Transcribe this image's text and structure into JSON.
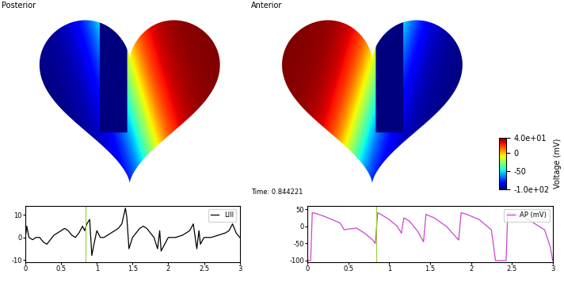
{
  "panels": {
    "posterior": {
      "title": "Posterior"
    },
    "anterior": {
      "title": "Anterior",
      "time_label": "Time: 0.844221"
    }
  },
  "colorbar": {
    "label": "Voltage (mV)",
    "range": [
      -100,
      40
    ],
    "ticks": [
      {
        "value": 40,
        "label": "4.0e+01"
      },
      0,
      -50,
      {
        "value": -100,
        "label": "-1.0e+02"
      }
    ]
  },
  "chart_data": [
    {
      "type": "line",
      "legend": "upper right",
      "vertical_line": 0.844221,
      "xlim": [
        0,
        3
      ],
      "xticks": [
        0,
        0.5,
        1,
        1.5,
        2,
        2.5,
        3
      ],
      "ylim": [
        -11,
        14
      ],
      "yticks": [
        -10,
        0,
        10
      ],
      "x": [
        0,
        0.02,
        0.05,
        0.1,
        0.15,
        0.2,
        0.25,
        0.3,
        0.35,
        0.4,
        0.45,
        0.5,
        0.55,
        0.6,
        0.65,
        0.7,
        0.75,
        0.8,
        0.83,
        0.86,
        0.9,
        0.93,
        0.96,
        1.0,
        1.05,
        1.1,
        1.15,
        1.2,
        1.25,
        1.3,
        1.35,
        1.4,
        1.42,
        1.45,
        1.5,
        1.55,
        1.6,
        1.65,
        1.7,
        1.75,
        1.8,
        1.85,
        1.88,
        1.9,
        1.95,
        2.0,
        2.1,
        2.2,
        2.3,
        2.35,
        2.4,
        2.43,
        2.45,
        2.5,
        2.6,
        2.7,
        2.8,
        2.85,
        2.9,
        2.95,
        3.0
      ],
      "series": [
        {
          "name": "LIII",
          "color": "#000000",
          "values": [
            0,
            5,
            0,
            -1,
            0,
            0,
            -2,
            -3,
            -1,
            1,
            2,
            3,
            4,
            3,
            1,
            0,
            2,
            5,
            3,
            6,
            8,
            -8,
            -3,
            3,
            0,
            0,
            1,
            2,
            3,
            4,
            6,
            13,
            9,
            -5,
            0,
            2,
            4,
            5,
            4,
            2,
            0,
            -5,
            3,
            -6,
            -3,
            0,
            0,
            1,
            3,
            6,
            -5,
            3,
            -3,
            0,
            0,
            1,
            2,
            3,
            6,
            2,
            0
          ]
        }
      ]
    },
    {
      "type": "line",
      "legend": "upper right",
      "vertical_line": 0.844221,
      "xlim": [
        0,
        3
      ],
      "xticks": [
        0,
        0.5,
        1,
        1.5,
        2,
        2.5,
        3
      ],
      "ylim": [
        -105,
        60
      ],
      "yticks": [
        -100,
        -50,
        0,
        50
      ],
      "x": [
        0,
        0.04,
        0.06,
        0.1,
        0.2,
        0.3,
        0.4,
        0.45,
        0.5,
        0.6,
        0.7,
        0.8,
        0.83,
        0.86,
        0.9,
        1.0,
        1.1,
        1.15,
        1.18,
        1.25,
        1.35,
        1.42,
        1.45,
        1.55,
        1.7,
        1.85,
        1.88,
        1.95,
        2.1,
        2.25,
        2.3,
        2.43,
        2.45,
        2.55,
        2.7,
        2.9,
        2.97,
        3.0
      ],
      "series": [
        {
          "name": "AP (mV)",
          "color": "#cc44cc",
          "values": [
            -100,
            -100,
            40,
            38,
            30,
            20,
            10,
            -10,
            -8,
            -5,
            -20,
            -40,
            -50,
            40,
            35,
            20,
            0,
            -20,
            25,
            15,
            -15,
            -45,
            35,
            25,
            0,
            -40,
            40,
            35,
            20,
            -10,
            -100,
            -100,
            40,
            35,
            20,
            -10,
            -60,
            -100
          ]
        }
      ]
    }
  ]
}
